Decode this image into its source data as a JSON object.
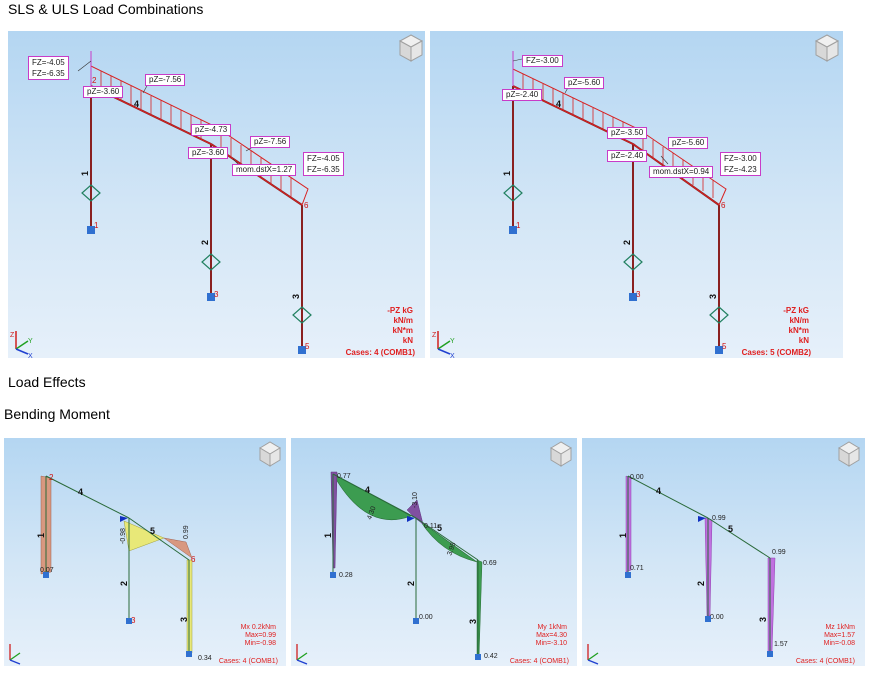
{
  "headings": {
    "sls_uls": "SLS & ULS Load Combinations",
    "load_effects": "Load Effects",
    "bending_moment": "Bending Moment"
  },
  "colors": {
    "load": "#d82020",
    "label_border": "#c83cc8",
    "mx_fill": "#d89880",
    "mx_fill2": "#e8e878",
    "my_fill": "#3c9c50",
    "mz_fill": "#c070e0",
    "support": "#2060c0",
    "diamond": "#208060"
  },
  "viewports": {
    "comb1": {
      "labels": {
        "fz_top_a": "FZ=-4.05",
        "fz_top_b": "FZ=-6.35",
        "pz_1": "pZ=-3.60",
        "pz_2": "pZ=-7.56",
        "pz_3": "pZ=-4.73",
        "pz_4": "pZ=-7.56",
        "pz_5": "pZ=-3.60",
        "mom": "mom.dstX=1.27",
        "fz_end_a": "FZ=-4.05",
        "fz_end_b": "FZ=-6.35"
      },
      "members": {
        "m1": "1",
        "m2": "2",
        "m3": "3",
        "m4": "4"
      },
      "nodes": {
        "n1": "1",
        "n2": "2",
        "n3": "3",
        "n5": "5",
        "n6": "6"
      },
      "legend": {
        "l1": "-PZ  kG",
        "l2": "kN/m",
        "l3": "kN*m",
        "l4": "kN"
      },
      "cases": "Cases: 4 (COMB1)"
    },
    "comb2": {
      "labels": {
        "fz_top": "FZ=-3.00",
        "pz_1": "pZ=-2.40",
        "pz_2": "pZ=-5.60",
        "pz_3": "pZ=-3.50",
        "pz_4": "pZ=-5.60",
        "pz_5": "pZ=-2.40",
        "mom": "mom.dstX=0.94",
        "fz_end_a": "FZ=-3.00",
        "fz_end_b": "FZ=-4.23"
      },
      "members": {
        "m1": "1",
        "m2": "2",
        "m3": "3",
        "m4": "4"
      },
      "nodes": {
        "n1": "1",
        "n3": "3",
        "n5": "5",
        "n6": "6"
      },
      "legend": {
        "l1": "-PZ  kG",
        "l2": "kN/m",
        "l3": "kN*m",
        "l4": "kN"
      },
      "cases": "Cases: 5 (COMB2)"
    },
    "mx": {
      "values": {
        "v1": "0.07",
        "v2": "-0.98",
        "v3": "0.99",
        "v4": "0.34"
      },
      "members": {
        "m1": "1",
        "m2": "2",
        "m3": "3",
        "m4": "4",
        "m5": "5"
      },
      "nodes": {
        "n2": "2",
        "n3": "3",
        "n6": "6"
      },
      "legend": {
        "l1": "Mx  0.2kNm",
        "l2": "Max=0.99",
        "l3": "Min=-0.98"
      },
      "cases": "Cases: 4 (COMB1)"
    },
    "my": {
      "values": {
        "v1": "0.77",
        "v2": "4.30",
        "v3": "-3.10",
        "v4": "0.11",
        "v5": "3.95",
        "v6": "0.69",
        "v7": "0.28",
        "v8": "0.00",
        "v9": "0.42"
      },
      "members": {
        "m1": "1",
        "m2": "2",
        "m3": "3",
        "m4": "4",
        "m5": "5"
      },
      "legend": {
        "l1": "My  1kNm",
        "l2": "Max=4.30",
        "l3": "Min=-3.10"
      },
      "cases": "Cases: 4 (COMB1)"
    },
    "mz": {
      "values": {
        "v1": "0.00",
        "v2": "0.99",
        "v3": "0.99",
        "v4": "0.71",
        "v5": "0.00",
        "v6": "1.57"
      },
      "members": {
        "m1": "1",
        "m2": "2",
        "m3": "3",
        "m4": "4",
        "m5": "5"
      },
      "legend": {
        "l1": "Mz  1kNm",
        "l2": "Max=1.57",
        "l3": "Min=-0.08"
      },
      "cases": "Cases: 4 (COMB1)"
    }
  }
}
